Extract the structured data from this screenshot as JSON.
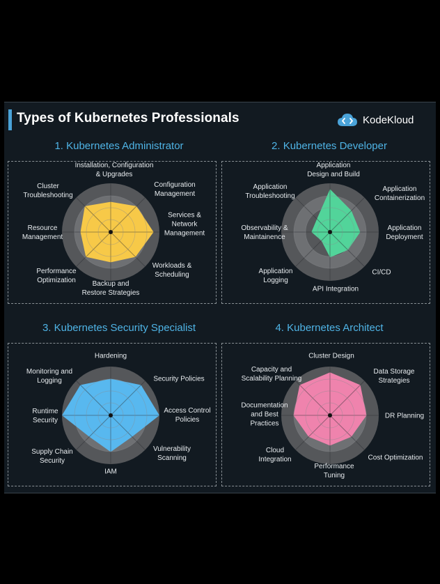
{
  "header": {
    "title": "Types of Kubernetes Professionals",
    "brand": "KodeKloud"
  },
  "colors": {
    "accent": "#4aa3d9",
    "title_blue": "#4fb4e6",
    "admin": "#f7c948",
    "developer": "#52d49a",
    "security": "#58b8ef",
    "architect": "#ef83ad",
    "ring_dark": "#55575a",
    "ring_light": "#6e7073"
  },
  "chart_data": [
    {
      "type": "radar",
      "title": "1. Kubernetes Administrator",
      "color": "#f7c948",
      "axes": [
        "Installation, Configuration & Upgrades",
        "Configuration Management",
        "Services & Network Management",
        "Workloads & Scheduling",
        "Backup and Restore Strategies",
        "Performance Optimization",
        "Resource Management",
        "Cluster Troubleshooting"
      ],
      "values": [
        0.62,
        0.75,
        0.88,
        0.72,
        0.62,
        0.72,
        0.62,
        0.75
      ],
      "range": [
        0,
        1
      ],
      "grid": true
    },
    {
      "type": "radar",
      "title": "2. Kubernetes Developer",
      "color": "#52d49a",
      "axes": [
        "Application Design and Build",
        "Application Containerization",
        "Application Deployment",
        "CI/CD",
        "API Integration",
        "Application Logging",
        "Observability & Maintainence",
        "Application Troubleshooting"
      ],
      "values": [
        0.88,
        0.62,
        0.62,
        0.52,
        0.52,
        0.25,
        0.38,
        0.38
      ],
      "range": [
        0,
        1
      ],
      "grid": true
    },
    {
      "type": "radar",
      "title": "3. Kubernetes Security Specialist",
      "color": "#58b8ef",
      "axes": [
        "Hardening",
        "Security Policies",
        "Access Control Policies",
        "Vulnerability Scanning",
        "IAM",
        "Supply Chain Security",
        "Runtime Security",
        "Monitoring and Logging"
      ],
      "values": [
        0.75,
        0.88,
        1.0,
        0.62,
        0.75,
        0.62,
        1.0,
        0.88
      ],
      "range": [
        0,
        1
      ],
      "grid": true
    },
    {
      "type": "radar",
      "title": "4. Kubernetes Architect",
      "color": "#ef83ad",
      "axes": [
        "Cluster Design",
        "Data Storage Strategies",
        "DR Planning",
        "Cost Optimization",
        "Performance Tuning",
        "Cloud Integration",
        "Documentation and Best Practices",
        "Capacity and Scalability Planning"
      ],
      "values": [
        0.88,
        0.88,
        0.75,
        0.62,
        0.62,
        0.62,
        0.75,
        0.88
      ],
      "range": [
        0,
        1
      ],
      "grid": true
    }
  ]
}
